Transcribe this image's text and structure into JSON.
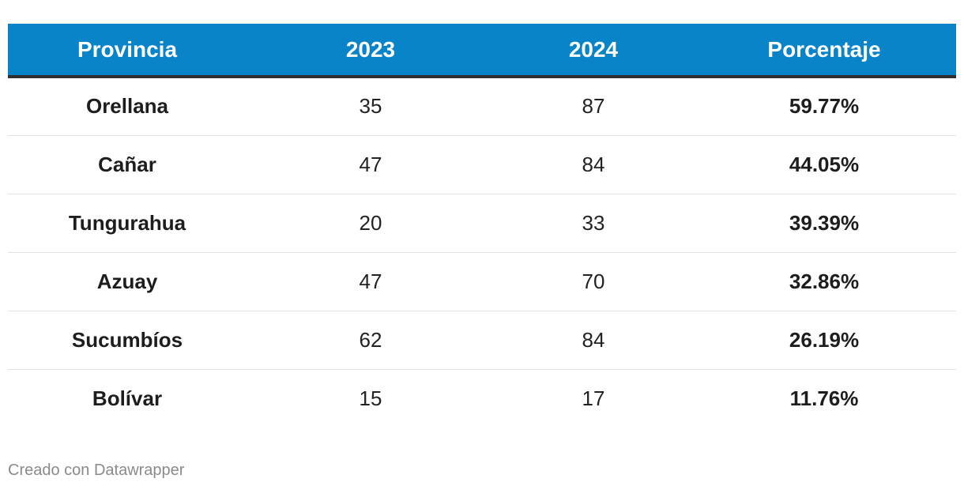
{
  "chart_data": {
    "type": "table",
    "columns": [
      "Provincia",
      "2023",
      "2024",
      "Porcentaje"
    ],
    "rows": [
      [
        "Orellana",
        "35",
        "87",
        "59.77%"
      ],
      [
        "Cañar",
        "47",
        "84",
        "44.05%"
      ],
      [
        "Tungurahua",
        "20",
        "33",
        "39.39%"
      ],
      [
        "Azuay",
        "47",
        "70",
        "32.86%"
      ],
      [
        "Sucumbíos",
        "62",
        "84",
        "26.19%"
      ],
      [
        "Bolívar",
        "15",
        "17",
        "11.76%"
      ]
    ]
  },
  "colors": {
    "header_background": "#0a84c9",
    "header_text": "#ffffff",
    "header_rule": "#2f2f2f",
    "row_divider": "#e2e2e2",
    "footer_text": "#8a8a8a"
  },
  "footer": {
    "credit": "Creado con Datawrapper"
  }
}
